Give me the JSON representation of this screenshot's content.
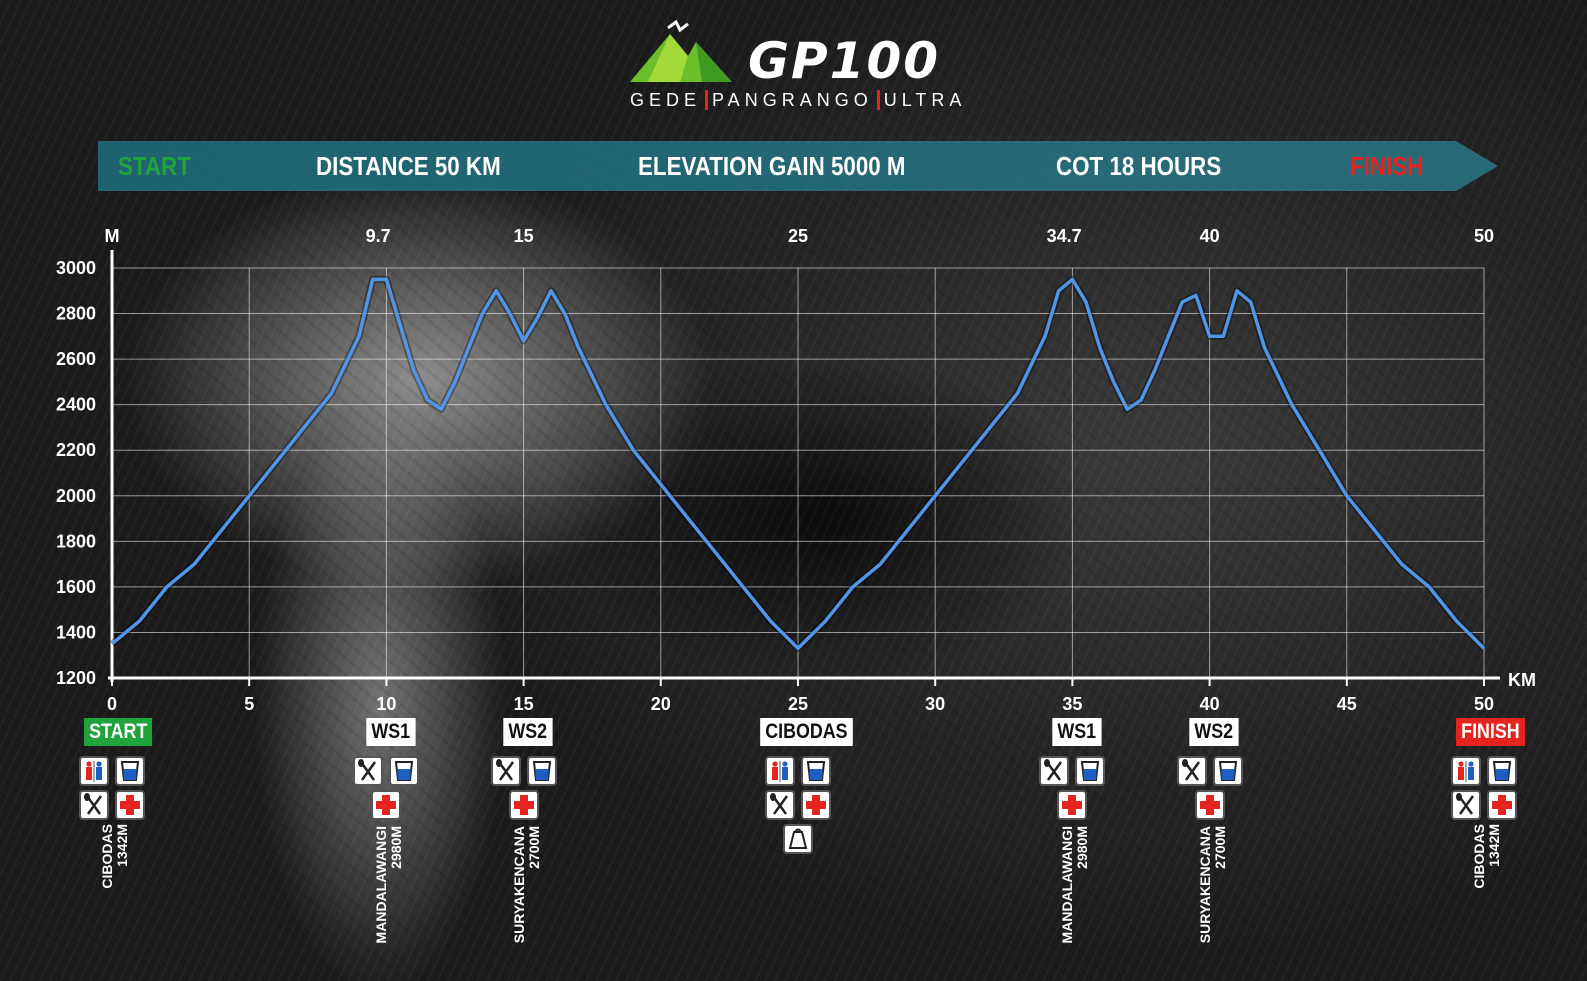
{
  "logo": {
    "brand": "GP100",
    "subtitle_parts": [
      "GEDE",
      "PANGRANGO",
      "ULTRA"
    ]
  },
  "banner": {
    "start": "START",
    "distance": "DISTANCE 50 KM",
    "elevation": "ELEVATION GAIN 5000 M",
    "cot": "COT 18 HOURS",
    "finish": "FINISH"
  },
  "colors": {
    "profile_line": "#4f95e8",
    "start_green": "#1fa33a",
    "finish_red": "#e52420",
    "banner_teal": "#1f6f7f"
  },
  "chart_data": {
    "type": "line",
    "ylabel": "M",
    "xlabel": "KM",
    "xlim": [
      0,
      50
    ],
    "ylim": [
      1200,
      3000
    ],
    "yticks": [
      1200,
      1400,
      1600,
      1800,
      2000,
      2200,
      2400,
      2600,
      2800,
      3000
    ],
    "xticks": [
      0,
      5,
      10,
      15,
      20,
      25,
      30,
      35,
      40,
      45,
      50
    ],
    "top_ticks": [
      "9.7",
      "15",
      "25",
      "34.7",
      "40",
      "50"
    ],
    "grid": true,
    "series": [
      {
        "values_x": [
          0,
          1,
          2,
          3,
          4,
          5,
          6,
          7,
          8,
          9,
          9.5,
          10,
          10.5,
          11,
          11.5,
          12,
          12.5,
          13,
          13.5,
          14,
          14.5,
          15,
          15.5,
          16,
          16.5,
          17,
          18,
          19,
          20,
          21,
          22,
          23,
          24,
          25,
          26,
          27,
          28,
          29,
          30,
          31,
          32,
          33,
          34,
          34.5,
          35,
          35.5,
          36,
          36.5,
          37,
          37.5,
          38,
          38.5,
          39,
          39.5,
          40,
          40.5,
          41,
          41.5,
          42,
          43,
          44,
          45,
          46,
          47,
          48,
          49,
          50
        ],
        "values_y": [
          1350,
          1450,
          1600,
          1700,
          1850,
          2000,
          2150,
          2300,
          2450,
          2700,
          2950,
          2950,
          2750,
          2550,
          2420,
          2380,
          2500,
          2650,
          2800,
          2900,
          2800,
          2680,
          2780,
          2900,
          2800,
          2650,
          2400,
          2200,
          2050,
          1900,
          1750,
          1600,
          1450,
          1330,
          1450,
          1600,
          1700,
          1850,
          2000,
          2150,
          2300,
          2450,
          2700,
          2900,
          2950,
          2850,
          2650,
          2500,
          2380,
          2420,
          2550,
          2700,
          2850,
          2880,
          2700,
          2700,
          2900,
          2850,
          2650,
          2400,
          2200,
          2000,
          1850,
          1700,
          1600,
          1450,
          1330
        ]
      }
    ]
  },
  "stations": [
    {
      "label": "START",
      "km": 0,
      "style": "start",
      "icons": [
        "toilet-icon",
        "water-icon",
        "food-icon",
        "medical-icon"
      ],
      "name": "CIBODAS",
      "elev": "1342M"
    },
    {
      "label": "WS1",
      "km": 10,
      "style": "ws",
      "icons": [
        "food-icon",
        "water-icon",
        "medical-icon"
      ],
      "name": "MANDALAWANGI",
      "elev": "2980M"
    },
    {
      "label": "WS2",
      "km": 15,
      "style": "ws",
      "icons": [
        "food-icon",
        "water-icon",
        "medical-icon"
      ],
      "name": "SURYAKENCANA",
      "elev": "2700M"
    },
    {
      "label": "CIBODAS",
      "km": 25,
      "style": "ws",
      "icons": [
        "toilet-icon",
        "water-icon",
        "food-icon",
        "medical-icon",
        "drop-bag-icon"
      ]
    },
    {
      "label": "WS1",
      "km": 35,
      "style": "ws",
      "icons": [
        "food-icon",
        "water-icon",
        "medical-icon"
      ],
      "name": "MANDALAWANGI",
      "elev": "2980M"
    },
    {
      "label": "WS2",
      "km": 40,
      "style": "ws",
      "icons": [
        "food-icon",
        "water-icon",
        "medical-icon"
      ],
      "name": "SURYAKENCANA",
      "elev": "2700M"
    },
    {
      "label": "FINISH",
      "km": 50,
      "style": "finish",
      "icons": [
        "toilet-icon",
        "water-icon",
        "food-icon",
        "medical-icon"
      ],
      "name": "CIBODAS",
      "elev": "1342M"
    }
  ]
}
